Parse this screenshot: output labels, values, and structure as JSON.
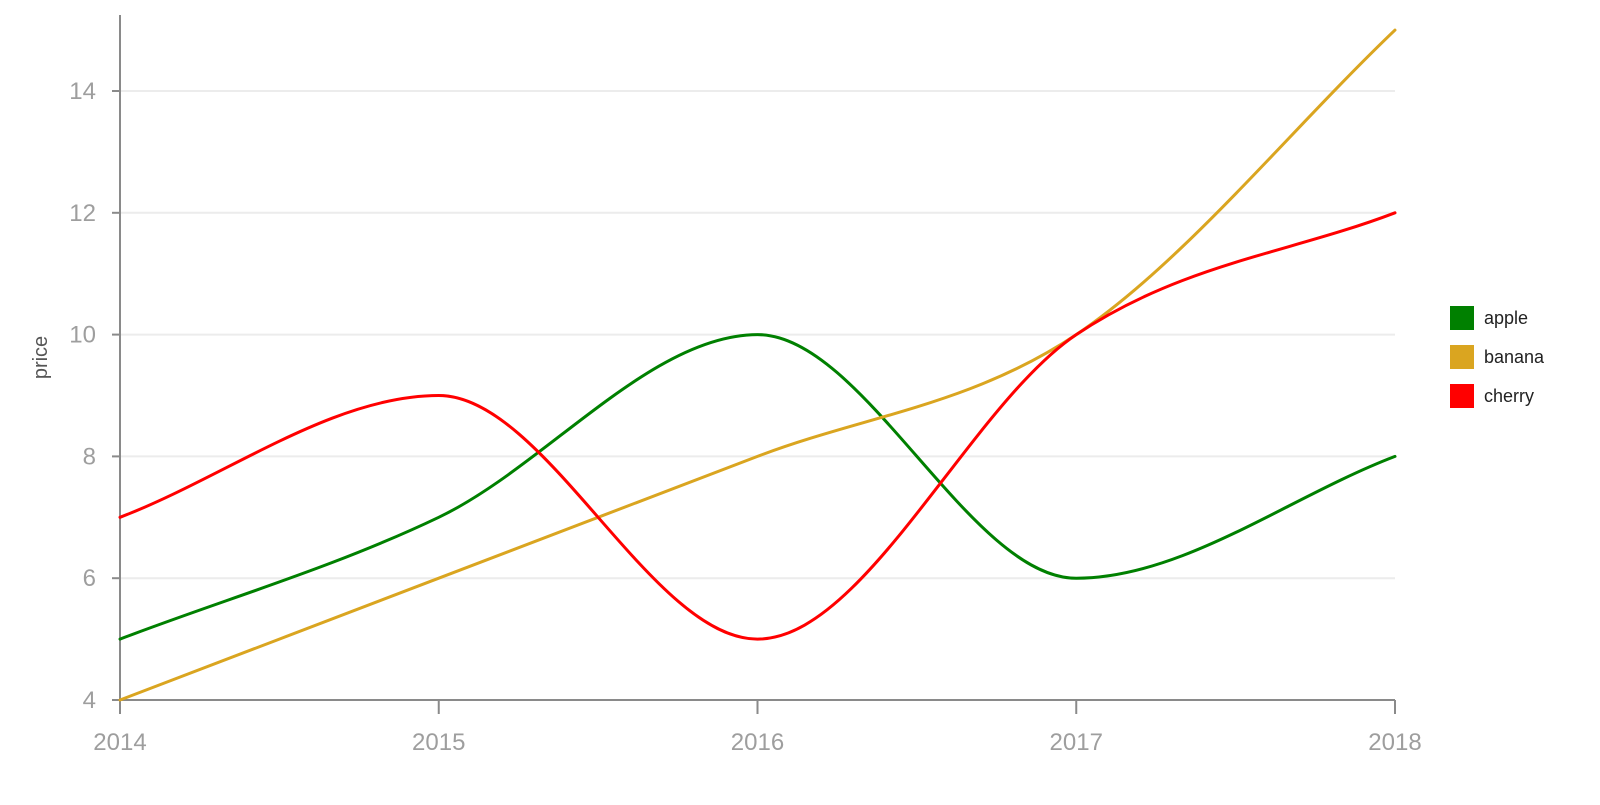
{
  "chart_data": {
    "type": "line",
    "title": "",
    "xlabel": "",
    "ylabel": "price",
    "x": [
      2014,
      2015,
      2016,
      2017,
      2018
    ],
    "xlim": [
      2014,
      2018
    ],
    "ylim": [
      4,
      15
    ],
    "y_ticks": [
      4,
      6,
      8,
      10,
      12,
      14
    ],
    "x_ticks": [
      2014,
      2015,
      2016,
      2017,
      2018
    ],
    "grid": "horizontal",
    "legend_position": "right",
    "smooth": true,
    "series": [
      {
        "name": "apple",
        "color": "#008000",
        "values": [
          5,
          7,
          10,
          6,
          8
        ]
      },
      {
        "name": "banana",
        "color": "#DAA520",
        "values": [
          4,
          6,
          8,
          10,
          15
        ]
      },
      {
        "name": "cherry",
        "color": "#FF0000",
        "values": [
          7,
          9,
          5,
          10,
          12
        ]
      }
    ]
  }
}
